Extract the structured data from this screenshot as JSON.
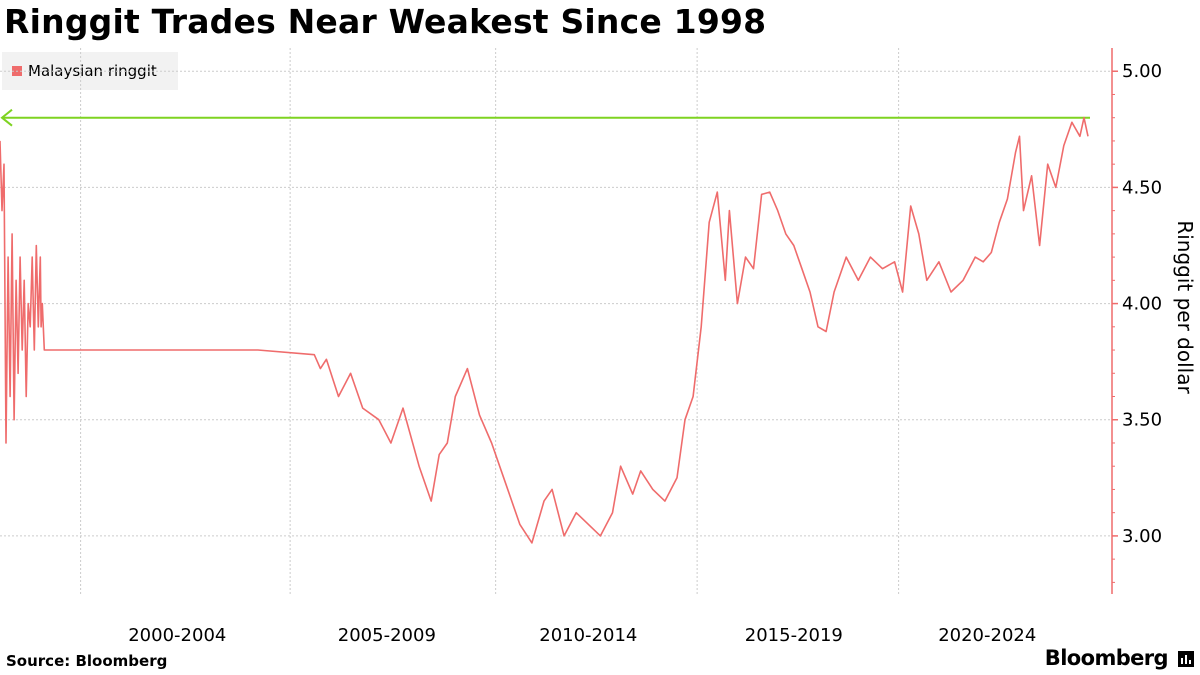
{
  "title": "Ringgit Trades Near Weakest Since 1998",
  "source": "Source: Bloomberg",
  "brand": "Bloomberg",
  "brand_icon": "bloomberg-terminal-icon",
  "colors": {
    "series": "#ef6c6c",
    "reference_line": "#7ed321",
    "axis": "#ef6c6c",
    "grid": "#cccccc"
  },
  "chart_data": {
    "type": "line",
    "title": "Ringgit Trades Near Weakest Since 1998",
    "ylabel": "Ringgit per dollar",
    "xlabel": "",
    "x_range": [
      1997.6,
      2024.6
    ],
    "ylim": [
      2.75,
      5.1
    ],
    "y_ticks": [
      3.0,
      3.5,
      4.0,
      4.5,
      5.0
    ],
    "y_tick_labels": [
      "3.00",
      "3.50",
      "4.00",
      "4.50",
      "5.00"
    ],
    "x_tick_labels": [
      "2000-2004",
      "2005-2009",
      "2010-2014",
      "2015-2019",
      "2020-2024"
    ],
    "x_tick_label_centers": [
      2002.0,
      2007.2,
      2012.2,
      2017.3,
      2022.1
    ],
    "x_grid": [
      1999.6,
      2004.8,
      2009.9,
      2014.9,
      2019.9
    ],
    "grid": true,
    "legend": {
      "position": "top-left",
      "entries": [
        "Malaysian ringgit"
      ]
    },
    "reference_line": {
      "value": 4.8,
      "direction": "horizontal",
      "arrow": "left"
    },
    "series": [
      {
        "name": "Malaysian ringgit",
        "x": [
          1997.6,
          1997.65,
          1997.7,
          1997.75,
          1997.8,
          1997.85,
          1997.9,
          1997.95,
          1998.0,
          1998.05,
          1998.1,
          1998.15,
          1998.2,
          1998.25,
          1998.3,
          1998.35,
          1998.4,
          1998.45,
          1998.5,
          1998.55,
          1998.6,
          1998.62,
          1998.65,
          1998.7,
          2000.0,
          2002.0,
          2004.0,
          2005.4,
          2005.55,
          2005.7,
          2006.0,
          2006.3,
          2006.6,
          2007.0,
          2007.3,
          2007.6,
          2008.0,
          2008.3,
          2008.5,
          2008.7,
          2008.9,
          2009.2,
          2009.5,
          2009.8,
          2010.1,
          2010.5,
          2010.8,
          2011.1,
          2011.3,
          2011.6,
          2011.9,
          2012.2,
          2012.5,
          2012.8,
          2013.0,
          2013.3,
          2013.5,
          2013.8,
          2014.1,
          2014.4,
          2014.6,
          2014.8,
          2015.0,
          2015.2,
          2015.4,
          2015.6,
          2015.7,
          2015.9,
          2016.1,
          2016.3,
          2016.5,
          2016.7,
          2016.9,
          2017.1,
          2017.3,
          2017.5,
          2017.7,
          2017.9,
          2018.1,
          2018.3,
          2018.6,
          2018.9,
          2019.2,
          2019.5,
          2019.8,
          2020.0,
          2020.2,
          2020.4,
          2020.6,
          2020.9,
          2021.2,
          2021.5,
          2021.8,
          2022.0,
          2022.2,
          2022.4,
          2022.6,
          2022.8,
          2022.9,
          2023.0,
          2023.2,
          2023.4,
          2023.6,
          2023.8,
          2024.0,
          2024.2,
          2024.4,
          2024.5,
          2024.6
        ],
        "values": [
          4.7,
          4.4,
          4.6,
          3.4,
          4.2,
          3.6,
          4.3,
          3.5,
          4.1,
          3.7,
          4.2,
          3.8,
          4.1,
          3.6,
          4.0,
          3.9,
          4.2,
          3.8,
          4.25,
          3.9,
          4.2,
          3.9,
          4.0,
          3.8,
          3.8,
          3.8,
          3.8,
          3.78,
          3.72,
          3.76,
          3.6,
          3.7,
          3.55,
          3.5,
          3.4,
          3.55,
          3.3,
          3.15,
          3.35,
          3.4,
          3.6,
          3.72,
          3.52,
          3.4,
          3.25,
          3.05,
          2.97,
          3.15,
          3.2,
          3.0,
          3.1,
          3.05,
          3.0,
          3.1,
          3.3,
          3.18,
          3.28,
          3.2,
          3.15,
          3.25,
          3.5,
          3.6,
          3.9,
          4.35,
          4.48,
          4.1,
          4.4,
          4.0,
          4.2,
          4.15,
          4.47,
          4.48,
          4.4,
          4.3,
          4.25,
          4.15,
          4.05,
          3.9,
          3.88,
          4.05,
          4.2,
          4.1,
          4.2,
          4.15,
          4.18,
          4.05,
          4.42,
          4.3,
          4.1,
          4.18,
          4.05,
          4.1,
          4.2,
          4.18,
          4.22,
          4.35,
          4.45,
          4.65,
          4.72,
          4.4,
          4.55,
          4.25,
          4.6,
          4.5,
          4.68,
          4.78,
          4.72,
          4.8,
          4.72
        ]
      }
    ]
  }
}
